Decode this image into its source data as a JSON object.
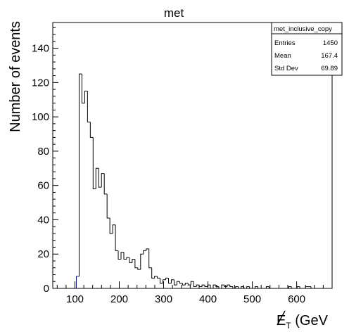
{
  "chart_data": {
    "type": "bar",
    "title": "met",
    "xlabel": "E_T (GeV",
    "xlabel_main": "E",
    "xlabel_sub": "T",
    "xlabel_rest": " (GeV",
    "ylabel": "Number of events",
    "xlim": [
      50,
      680
    ],
    "ylim": [
      0,
      155
    ],
    "x_ticks": [
      100,
      200,
      300,
      400,
      500,
      600
    ],
    "y_ticks": [
      0,
      20,
      40,
      60,
      80,
      100,
      120,
      140
    ],
    "bin_width": 6.3,
    "line_color": "#000000",
    "first_bin_color": "#1a1a8c",
    "grid": false,
    "stats_box": {
      "name": "met_inclusive_copy",
      "rows": [
        {
          "label": "Entries",
          "value": "1450"
        },
        {
          "label": "Mean",
          "value": "167.4"
        },
        {
          "label": "Std Dev",
          "value": "69.89"
        }
      ]
    },
    "bins": [
      {
        "x": 100,
        "y": 0
      },
      {
        "x": 103.15,
        "y": 7
      },
      {
        "x": 109.45,
        "y": 125
      },
      {
        "x": 115.75,
        "y": 108
      },
      {
        "x": 122.05,
        "y": 115
      },
      {
        "x": 128.35,
        "y": 97
      },
      {
        "x": 134.65,
        "y": 88
      },
      {
        "x": 140.95,
        "y": 58
      },
      {
        "x": 147.25,
        "y": 70
      },
      {
        "x": 153.55,
        "y": 59
      },
      {
        "x": 159.85,
        "y": 67
      },
      {
        "x": 166.15,
        "y": 55
      },
      {
        "x": 172.45,
        "y": 41
      },
      {
        "x": 178.75,
        "y": 32
      },
      {
        "x": 185.05,
        "y": 37
      },
      {
        "x": 191.35,
        "y": 22
      },
      {
        "x": 197.65,
        "y": 17
      },
      {
        "x": 203.95,
        "y": 21
      },
      {
        "x": 210.25,
        "y": 17
      },
      {
        "x": 216.55,
        "y": 18
      },
      {
        "x": 222.85,
        "y": 15
      },
      {
        "x": 229.15,
        "y": 17
      },
      {
        "x": 235.45,
        "y": 12
      },
      {
        "x": 241.75,
        "y": 11
      },
      {
        "x": 248.05,
        "y": 20
      },
      {
        "x": 254.35,
        "y": 22
      },
      {
        "x": 260.65,
        "y": 23
      },
      {
        "x": 266.95,
        "y": 12
      },
      {
        "x": 273.25,
        "y": 6
      },
      {
        "x": 279.55,
        "y": 7
      },
      {
        "x": 285.85,
        "y": 6
      },
      {
        "x": 292.15,
        "y": 3
      },
      {
        "x": 298.45,
        "y": 5
      },
      {
        "x": 304.75,
        "y": 6
      },
      {
        "x": 311.05,
        "y": 3
      },
      {
        "x": 317.35,
        "y": 5
      },
      {
        "x": 323.65,
        "y": 2
      },
      {
        "x": 329.95,
        "y": 4
      },
      {
        "x": 336.25,
        "y": 3
      },
      {
        "x": 342.55,
        "y": 2
      },
      {
        "x": 348.85,
        "y": 3
      },
      {
        "x": 355.15,
        "y": 2
      },
      {
        "x": 361.45,
        "y": 4
      },
      {
        "x": 367.75,
        "y": 1
      },
      {
        "x": 374.05,
        "y": 2
      },
      {
        "x": 380.35,
        "y": 1
      },
      {
        "x": 386.65,
        "y": 2
      },
      {
        "x": 392.95,
        "y": 1
      },
      {
        "x": 399.25,
        "y": 2
      },
      {
        "x": 405.55,
        "y": 0
      },
      {
        "x": 411.85,
        "y": 2
      },
      {
        "x": 418.15,
        "y": 1
      },
      {
        "x": 424.45,
        "y": 0
      },
      {
        "x": 430.75,
        "y": 2
      },
      {
        "x": 437.05,
        "y": 1
      },
      {
        "x": 443.35,
        "y": 2
      },
      {
        "x": 449.65,
        "y": 1
      },
      {
        "x": 455.95,
        "y": 0
      },
      {
        "x": 462.25,
        "y": 1
      },
      {
        "x": 468.55,
        "y": 0
      },
      {
        "x": 474.85,
        "y": 1
      },
      {
        "x": 481.15,
        "y": 0
      },
      {
        "x": 487.45,
        "y": 1
      },
      {
        "x": 493.75,
        "y": 0
      },
      {
        "x": 500.05,
        "y": 0
      },
      {
        "x": 506.35,
        "y": 1
      },
      {
        "x": 512.65,
        "y": 0
      },
      {
        "x": 518.95,
        "y": 0
      },
      {
        "x": 525.25,
        "y": 0
      },
      {
        "x": 531.55,
        "y": 1
      },
      {
        "x": 537.85,
        "y": 0
      },
      {
        "x": 544.15,
        "y": 0
      },
      {
        "x": 550.45,
        "y": 0
      },
      {
        "x": 556.75,
        "y": 0
      },
      {
        "x": 563.05,
        "y": 0
      },
      {
        "x": 569.35,
        "y": 0
      },
      {
        "x": 575.65,
        "y": 0
      },
      {
        "x": 581.95,
        "y": 1
      },
      {
        "x": 588.25,
        "y": 0
      },
      {
        "x": 594.55,
        "y": 0
      },
      {
        "x": 600.85,
        "y": 1
      },
      {
        "x": 607.15,
        "y": 0
      },
      {
        "x": 613.45,
        "y": 0
      },
      {
        "x": 619.75,
        "y": 1
      },
      {
        "x": 626.05,
        "y": 1
      },
      {
        "x": 632.35,
        "y": 0
      },
      {
        "x": 638.65,
        "y": 0
      }
    ]
  }
}
